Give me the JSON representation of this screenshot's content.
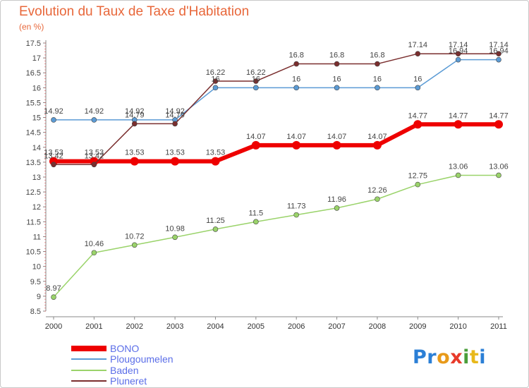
{
  "title": "Evolution du Taux de Taxe d'Habitation",
  "unit_label": "(en %)",
  "logo_text": "Proxiti",
  "colors": {
    "title": "#e8673a",
    "BONO": "#ee0000",
    "Plougoumelen": "#5b9bd5",
    "Baden": "#9ad36a",
    "Pluneret": "#7a2e2e"
  },
  "chart_data": {
    "type": "line",
    "x": [
      "2000",
      "2001",
      "2002",
      "2003",
      "2004",
      "2005",
      "2006",
      "2007",
      "2008",
      "2009",
      "2010",
      "2011"
    ],
    "ylim": [
      8.5,
      17.5
    ],
    "yticks": [
      "8.5",
      "9",
      "9.5",
      "10",
      "10.5",
      "11",
      "11.5",
      "12",
      "12.5",
      "13",
      "13.5",
      "14",
      "14.5",
      "15",
      "15.5",
      "16",
      "16.5",
      "17",
      "17.5"
    ],
    "grid": false,
    "legend_position": "bottom-left",
    "series": [
      {
        "name": "BONO",
        "color": "#ee0000",
        "width": 6,
        "marker": 6,
        "values": [
          13.53,
          13.53,
          13.53,
          13.53,
          13.53,
          14.07,
          14.07,
          14.07,
          14.07,
          14.77,
          14.77,
          14.77
        ],
        "labels": [
          "13.53",
          "13.53",
          "13.53",
          "13.53",
          "13.53",
          "14.07",
          "14.07",
          "14.07",
          "14.07",
          "14.77",
          "14.77",
          "14.77"
        ]
      },
      {
        "name": "Plougoumelen",
        "color": "#5b9bd5",
        "width": 1.5,
        "marker": 3.5,
        "values": [
          14.92,
          14.92,
          14.92,
          14.92,
          16,
          16,
          16,
          16,
          16,
          16,
          16.94,
          16.94
        ],
        "labels": [
          "14.92",
          "14.92",
          "14.92",
          "14.92",
          "16",
          "16",
          "16",
          "16",
          "16",
          "16",
          "16.94",
          "16.94"
        ]
      },
      {
        "name": "Baden",
        "color": "#9ad36a",
        "width": 1.5,
        "marker": 3.5,
        "values": [
          8.97,
          10.46,
          10.72,
          10.98,
          11.25,
          11.5,
          11.73,
          11.96,
          12.26,
          12.75,
          13.06,
          13.06
        ],
        "labels": [
          "8.97",
          "10.46",
          "10.72",
          "10.98",
          "11.25",
          "11.5",
          "11.73",
          "11.96",
          "12.26",
          "12.75",
          "13.06",
          "13.06"
        ]
      },
      {
        "name": "Pluneret",
        "color": "#7a2e2e",
        "width": 1.5,
        "marker": 3.5,
        "values": [
          13.42,
          13.42,
          14.79,
          14.79,
          16.22,
          16.22,
          16.8,
          16.8,
          16.8,
          17.14,
          17.14,
          17.14
        ],
        "labels": [
          "13.42",
          "13.42",
          "14.79",
          "14.79",
          "16.22",
          "16.22",
          "16.8",
          "16.8",
          "16.8",
          "17.14",
          "17.14",
          "17.14"
        ]
      }
    ]
  }
}
